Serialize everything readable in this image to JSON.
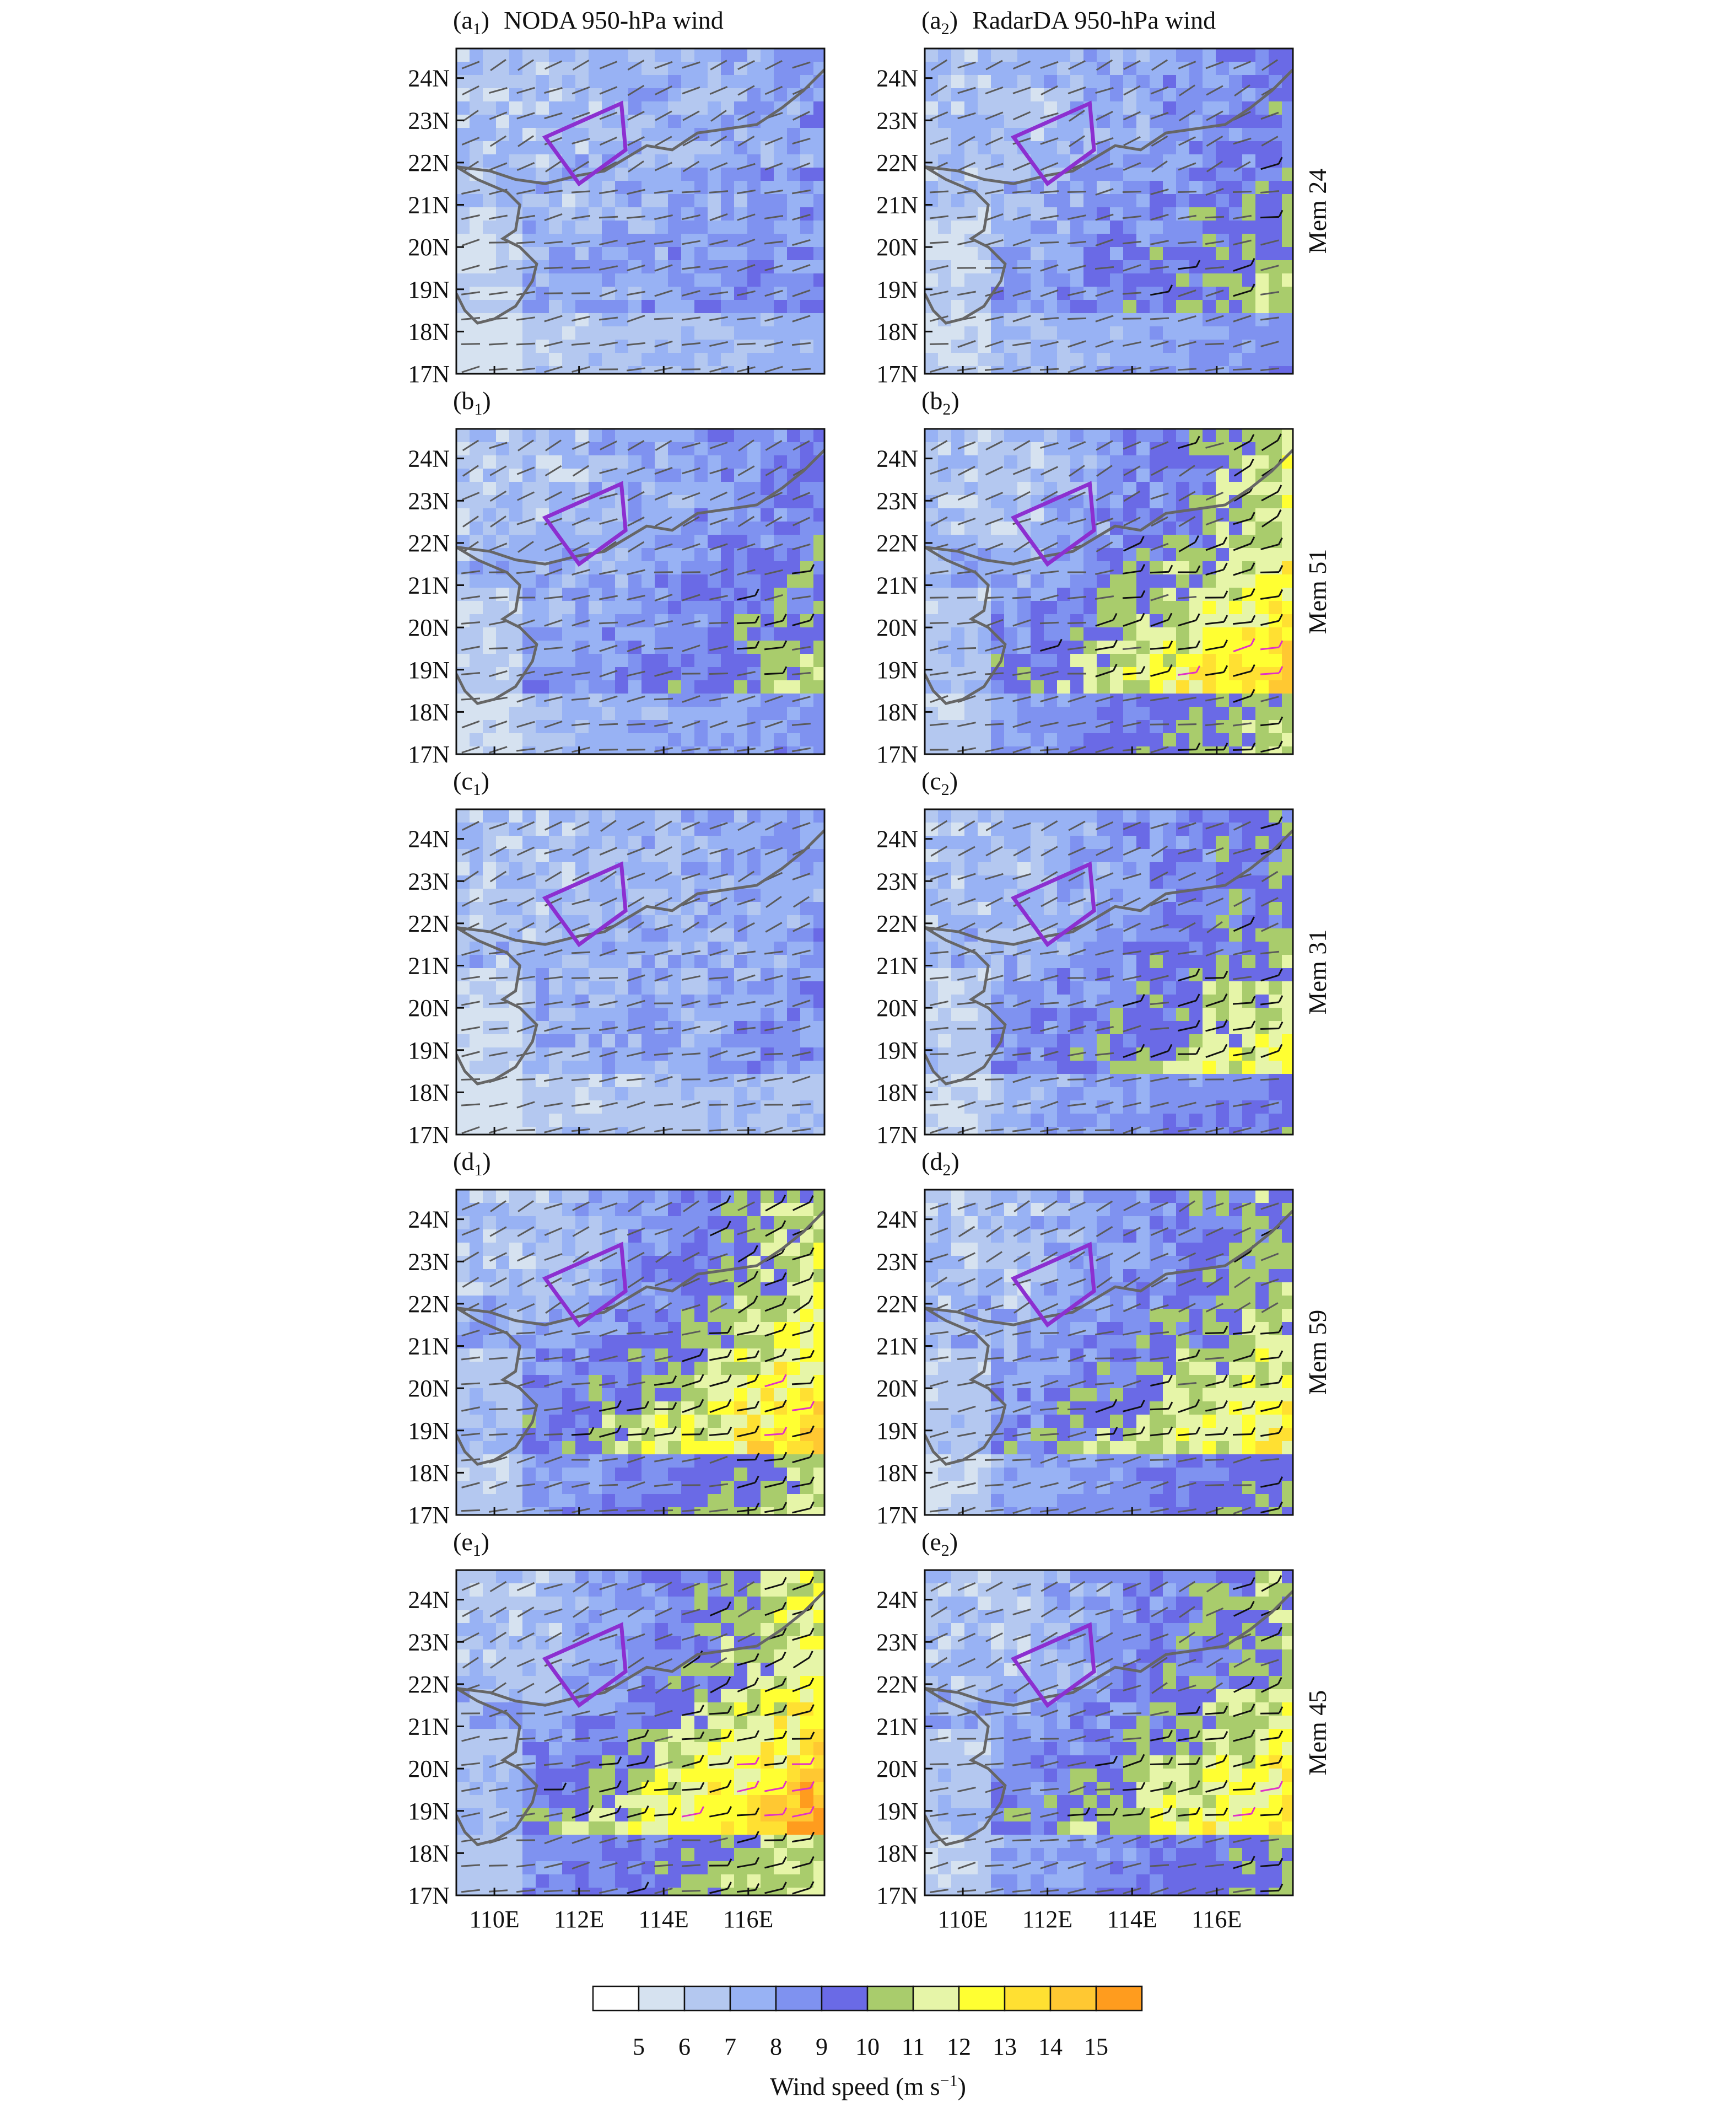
{
  "columns": [
    {
      "letter_sub": "1",
      "title": "NODA 950-hPa wind"
    },
    {
      "letter_sub": "2",
      "title": "RadarDA  950-hPa wind"
    }
  ],
  "rows": [
    {
      "letter": "a",
      "member": "Mem 24",
      "intensity": [
        0.25,
        0.45
      ]
    },
    {
      "letter": "b",
      "member": "Mem 51",
      "intensity": [
        0.45,
        0.85
      ]
    },
    {
      "letter": "c",
      "member": "Mem 31",
      "intensity": [
        0.2,
        0.6
      ]
    },
    {
      "letter": "d",
      "member": "Mem 59",
      "intensity": [
        0.85,
        0.7
      ]
    },
    {
      "letter": "e",
      "member": "Mem 45",
      "intensity": [
        0.95,
        0.75
      ]
    }
  ],
  "axes": {
    "lat_labels": [
      "24N",
      "23N",
      "22N",
      "21N",
      "20N",
      "19N",
      "18N",
      "17N"
    ],
    "lon_labels": [
      "110E",
      "112E",
      "114E",
      "116E"
    ],
    "lat_values": [
      24,
      23,
      22,
      21,
      20,
      19,
      18,
      17
    ],
    "lon_values": [
      110,
      112,
      114,
      116
    ],
    "lon_range": [
      109.1,
      117.8
    ],
    "lat_range": [
      17,
      24.7
    ]
  },
  "colorbar": {
    "label": "Wind speed (m s",
    "label_sup": "−1",
    "label_close": ")",
    "ticks": [
      "5",
      "6",
      "7",
      "8",
      "9",
      "10",
      "11",
      "12",
      "13",
      "14",
      "15"
    ],
    "colors": [
      "#ffffff",
      "#d6e2f0",
      "#b4c8f0",
      "#98b2f4",
      "#7f92f0",
      "#6a6ae6",
      "#a9cc6c",
      "#e6f5a8",
      "#ffff32",
      "#ffe032",
      "#ffc832",
      "#ff9c1e"
    ]
  },
  "colors": {
    "box": "#8c2fd0",
    "coast": "#666666",
    "barb_gray": "#5a5a5a",
    "barb_black": "#111111",
    "barb_magenta": "#e030c8"
  }
}
